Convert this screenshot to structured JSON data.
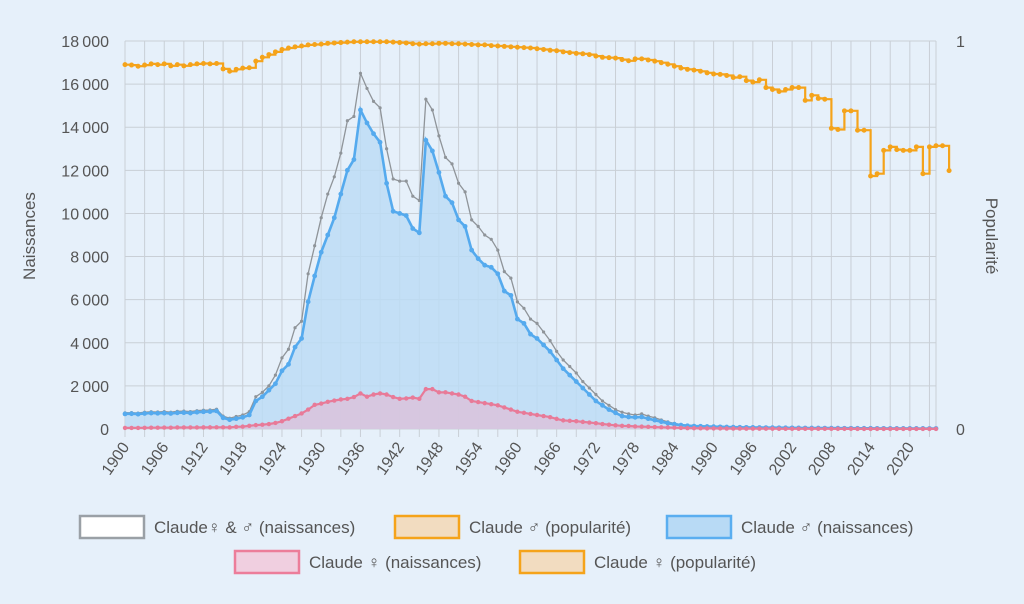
{
  "chart_data": {
    "type": "line",
    "ylabel": "Naissances",
    "y2label": "Popularité",
    "xlim": [
      1900,
      2024
    ],
    "ylim": [
      0,
      18000
    ],
    "y2lim": [
      0,
      1
    ],
    "y_ticks": [
      "0",
      "2000",
      "4000",
      "6000",
      "8000",
      "10000",
      "12000",
      "14000",
      "16000",
      "18000"
    ],
    "y2_ticks": [
      "0",
      "1"
    ],
    "x_ticks": [
      "1900",
      "1906",
      "1912",
      "1918",
      "1924",
      "1930",
      "1936",
      "1942",
      "1948",
      "1954",
      "1960",
      "1966",
      "1972",
      "1978",
      "1984",
      "1990",
      "1996",
      "2002",
      "2008",
      "2014",
      "2020"
    ],
    "grid": true,
    "legend_position": "bottom",
    "legend": [
      {
        "label": "Claude♀ & ♂ (naissances)",
        "stroke": "#9aa0a6",
        "fill": "#ffffff"
      },
      {
        "label": "Claude ♂ (popularité)",
        "stroke": "#f5a31a",
        "fill": "#f2dcc0"
      },
      {
        "label": "Claude ♂ (naissances)",
        "stroke": "#5aaef0",
        "fill": "#b8daf5"
      },
      {
        "label": "Claude ♀ (naissances)",
        "stroke": "#ec7d9a",
        "fill": "#f0cfe0"
      },
      {
        "label": "Claude ♀ (popularité)",
        "stroke": "#f5a31a",
        "fill": "#f2dcc0"
      }
    ],
    "colors": {
      "total": "#8f9499",
      "male": "#55aaee",
      "male_fill": "#bcdcf5",
      "female": "#e87a98",
      "female_fill": "#dbc3dc",
      "popularity": "#f5a31a",
      "grid": "#c9cfd6"
    },
    "series": [
      {
        "name": "Claude♀ & ♂ (naissances)",
        "x_start": 1900,
        "values": [
          750,
          760,
          740,
          780,
          800,
          790,
          810,
          780,
          820,
          830,
          810,
          850,
          870,
          880,
          920,
          600,
          500,
          580,
          650,
          800,
          1500,
          1700,
          2000,
          2500,
          3300,
          3700,
          4700,
          5000,
          7200,
          8500,
          9800,
          10900,
          11700,
          12800,
          14300,
          14500,
          16500,
          15800,
          15200,
          14900,
          13000,
          11600,
          11500,
          11500,
          10800,
          10600,
          15300,
          14800,
          13600,
          12600,
          12300,
          11400,
          11000,
          9700,
          9400,
          9000,
          8800,
          8300,
          7300,
          7000,
          5900,
          5600,
          5100,
          4900,
          4500,
          4100,
          3600,
          3200,
          2900,
          2600,
          2200,
          1900,
          1600,
          1300,
          1100,
          900,
          780,
          700,
          650,
          700,
          600,
          520,
          420,
          330,
          260,
          210,
          180,
          160,
          150,
          140,
          130,
          120,
          110,
          100,
          95,
          90,
          85,
          80,
          75,
          70,
          68,
          65,
          60,
          58,
          55,
          52,
          50,
          48,
          46,
          44,
          42,
          40,
          38,
          36,
          35,
          34,
          33,
          32,
          31,
          30,
          30,
          29,
          28,
          28,
          27
        ]
      },
      {
        "name": "Claude ♂ (naissances)",
        "x_start": 1900,
        "values": [
          700,
          710,
          690,
          720,
          740,
          730,
          740,
          720,
          750,
          760,
          740,
          780,
          800,
          810,
          840,
          520,
          430,
          480,
          540,
          650,
          1300,
          1500,
          1800,
          2100,
          2700,
          3000,
          3800,
          4200,
          5900,
          7100,
          8200,
          9000,
          9800,
          10900,
          12000,
          12500,
          14800,
          14200,
          13700,
          13300,
          11400,
          10100,
          10000,
          9900,
          9300,
          9100,
          13400,
          12900,
          11900,
          10800,
          10500,
          9700,
          9400,
          8300,
          7900,
          7600,
          7500,
          7200,
          6400,
          6200,
          5100,
          4900,
          4400,
          4200,
          3900,
          3600,
          3200,
          2800,
          2500,
          2200,
          1900,
          1600,
          1300,
          1100,
          900,
          750,
          600,
          560,
          540,
          560,
          480,
          410,
          340,
          270,
          220,
          180,
          150,
          135,
          125,
          115,
          108,
          100,
          92,
          85,
          80,
          76,
          72,
          68,
          64,
          60,
          58,
          55,
          52,
          49,
          47,
          45,
          43,
          41,
          40,
          38,
          36,
          35,
          33,
          32,
          31,
          30,
          29,
          28,
          27,
          26,
          26,
          25,
          25,
          24,
          24
        ]
      },
      {
        "name": "Claude ♀ (naissances)",
        "x_start": 1900,
        "values": [
          50,
          50,
          50,
          55,
          60,
          60,
          65,
          60,
          70,
          70,
          70,
          70,
          75,
          75,
          80,
          80,
          75,
          100,
          110,
          150,
          180,
          200,
          230,
          280,
          360,
          480,
          600,
          720,
          900,
          1120,
          1180,
          1260,
          1320,
          1370,
          1400,
          1480,
          1650,
          1500,
          1600,
          1650,
          1600,
          1480,
          1400,
          1420,
          1460,
          1400,
          1850,
          1850,
          1700,
          1700,
          1650,
          1600,
          1500,
          1300,
          1250,
          1200,
          1150,
          1100,
          1000,
          900,
          800,
          750,
          700,
          650,
          600,
          550,
          470,
          400,
          380,
          360,
          330,
          300,
          270,
          230,
          200,
          170,
          150,
          140,
          120,
          110,
          100,
          90,
          80,
          70,
          60,
          50,
          40,
          35,
          30,
          28,
          26,
          24,
          22,
          20,
          18,
          16,
          15,
          14,
          13,
          12,
          11,
          10,
          10,
          9,
          9,
          8,
          8,
          7,
          7,
          6,
          6,
          6,
          5,
          5,
          5,
          5,
          4,
          4,
          4,
          4,
          4,
          3,
          3,
          3,
          3
        ]
      },
      {
        "name": "Claude ♂ (popularité)",
        "axis": "right",
        "x_start": 1900,
        "values": [
          0.939,
          0.938,
          0.935,
          0.938,
          0.941,
          0.939,
          0.941,
          0.936,
          0.939,
          0.936,
          0.939,
          0.941,
          0.942,
          0.941,
          0.942,
          0.928,
          0.922,
          0.927,
          0.93,
          0.931,
          0.948,
          0.958,
          0.965,
          0.972,
          0.978,
          0.982,
          0.985,
          0.987,
          0.99,
          0.991,
          0.992,
          0.994,
          0.995,
          0.996,
          0.997,
          0.998,
          0.998,
          0.998,
          0.998,
          0.998,
          0.998,
          0.997,
          0.996,
          0.995,
          0.993,
          0.992,
          0.993,
          0.993,
          0.994,
          0.994,
          0.993,
          0.993,
          0.992,
          0.991,
          0.99,
          0.99,
          0.988,
          0.987,
          0.986,
          0.985,
          0.984,
          0.983,
          0.982,
          0.98,
          0.978,
          0.976,
          0.975,
          0.972,
          0.97,
          0.968,
          0.967,
          0.965,
          0.961,
          0.958,
          0.957,
          0.956,
          0.952,
          0.949,
          0.954,
          0.954,
          0.951,
          0.948,
          0.944,
          0.94,
          0.935,
          0.93,
          0.927,
          0.925,
          0.922,
          0.918,
          0.915,
          0.914,
          0.911,
          0.906,
          0.908,
          0.898,
          0.894,
          0.9,
          0.88,
          0.875,
          0.87,
          0.875,
          0.88,
          0.88,
          0.847,
          0.86,
          0.852,
          0.85,
          0.775,
          0.772,
          0.82,
          0.82,
          0.77,
          0.77,
          0.652,
          0.658,
          0.718,
          0.727,
          0.72,
          0.718,
          0.718,
          0.727,
          0.658,
          0.727,
          0.73,
          0.73,
          0.666
        ]
      },
      {
        "name": "Claude ♀ (popularité)",
        "axis": "right",
        "x_start": 1900,
        "values": []
      }
    ]
  }
}
